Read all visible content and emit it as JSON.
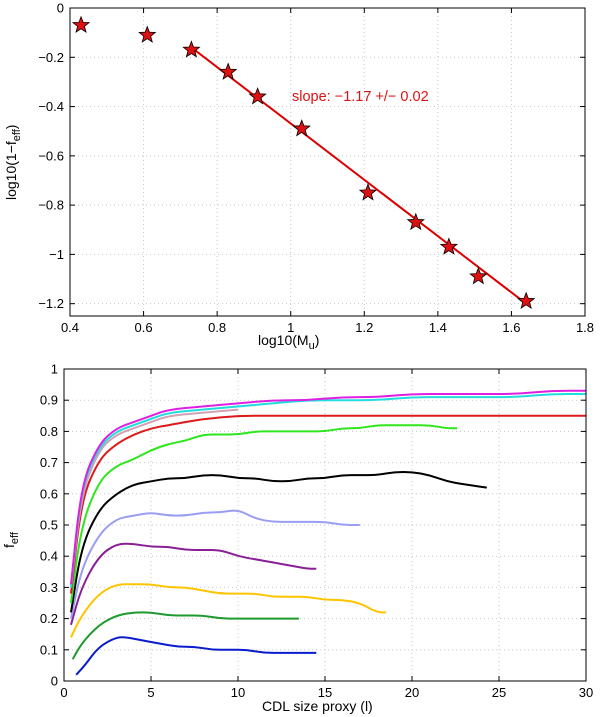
{
  "chart_data": [
    {
      "type": "scatter",
      "xlabel": "log10(M",
      "xlabel_sub": "u",
      "xlabel_tail": ")",
      "ylabel": "log10(1−f",
      "ylabel_sub": "eff",
      "ylabel_tail": ")",
      "xlim": [
        0.4,
        1.8
      ],
      "ylim": [
        -1.25,
        0
      ],
      "xticks": [
        0.4,
        0.6,
        0.8,
        1,
        1.2,
        1.4,
        1.6,
        1.8
      ],
      "xtick_labels": [
        "0.4",
        "0.6",
        "0.8",
        "1",
        "1.2",
        "1.4",
        "1.6",
        "1.8"
      ],
      "yticks": [
        0,
        -0.2,
        -0.4,
        -0.6,
        -0.8,
        -1,
        -1.2
      ],
      "ytick_labels": [
        "0",
        "−0.2",
        "−0.4",
        "−0.6",
        "−0.8",
        "−1",
        "−1.2"
      ],
      "grid": true,
      "annotation": "slope: −1.17 +/− 0.02",
      "marker_color": "#dd1111",
      "fit_color": "#dd0000",
      "points": {
        "x": [
          0.43,
          0.61,
          0.73,
          0.83,
          0.91,
          1.03,
          1.21,
          1.34,
          1.43,
          1.51,
          1.64
        ],
        "y": [
          -0.07,
          -0.11,
          -0.17,
          -0.26,
          -0.36,
          -0.49,
          -0.75,
          -0.87,
          -0.97,
          -1.09,
          -1.19
        ]
      },
      "fit_line": {
        "x": [
          0.73,
          1.64
        ],
        "y": [
          -0.16,
          -1.2
        ]
      }
    },
    {
      "type": "line",
      "xlabel": "CDL size proxy (l)",
      "ylabel": "f",
      "ylabel_sub": "eff",
      "xlim": [
        0,
        30
      ],
      "ylim": [
        0,
        1
      ],
      "xticks": [
        0,
        5,
        10,
        15,
        20,
        25,
        30
      ],
      "xtick_labels": [
        "0",
        "5",
        "10",
        "15",
        "20",
        "25",
        "30"
      ],
      "yticks": [
        0,
        0.1,
        0.2,
        0.3,
        0.4,
        0.5,
        0.6,
        0.7,
        0.8,
        0.9,
        1
      ],
      "ytick_labels": [
        "0",
        "0.1",
        "0.2",
        "0.3",
        "0.4",
        "0.5",
        "0.6",
        "0.7",
        "0.8",
        "0.9",
        "1"
      ],
      "grid": true,
      "series": [
        {
          "color": "#0a1ccc",
          "x": [
            0.7,
            1.2,
            2,
            3,
            3.6,
            4.5,
            5.5,
            6.5,
            7.5,
            8.5,
            9.5,
            10.5,
            11.5,
            12.5,
            13.5,
            14.5
          ],
          "y": [
            0.02,
            0.05,
            0.11,
            0.14,
            0.14,
            0.13,
            0.12,
            0.11,
            0.11,
            0.1,
            0.1,
            0.1,
            0.09,
            0.09,
            0.09,
            0.09
          ]
        },
        {
          "color": "#1e9a2e",
          "x": [
            0.5,
            1,
            2,
            3,
            4,
            5,
            6,
            7,
            8,
            9,
            10,
            11,
            12,
            13,
            13.5
          ],
          "y": [
            0.07,
            0.12,
            0.18,
            0.21,
            0.22,
            0.22,
            0.21,
            0.21,
            0.21,
            0.2,
            0.2,
            0.2,
            0.2,
            0.2,
            0.2
          ]
        },
        {
          "color": "#ffc400",
          "x": [
            0.4,
            1,
            2,
            3,
            4,
            5,
            6,
            7,
            8,
            9,
            10,
            11,
            12,
            13,
            14,
            15,
            16,
            17,
            18,
            18.5
          ],
          "y": [
            0.14,
            0.21,
            0.28,
            0.31,
            0.31,
            0.31,
            0.3,
            0.3,
            0.29,
            0.28,
            0.28,
            0.28,
            0.27,
            0.27,
            0.27,
            0.26,
            0.26,
            0.25,
            0.22,
            0.22
          ]
        },
        {
          "color": "#8a1f96",
          "x": [
            0.4,
            1,
            2,
            3,
            4,
            5,
            6,
            7,
            8,
            9,
            10,
            11,
            12,
            13,
            14,
            14.5
          ],
          "y": [
            0.18,
            0.3,
            0.4,
            0.44,
            0.44,
            0.43,
            0.43,
            0.42,
            0.42,
            0.42,
            0.4,
            0.39,
            0.38,
            0.37,
            0.36,
            0.36
          ]
        },
        {
          "color": "#9a9ef2",
          "x": [
            0.4,
            1,
            2,
            3,
            4,
            5,
            6,
            7,
            8,
            9,
            10,
            11,
            12,
            13,
            14,
            15,
            16,
            17
          ],
          "y": [
            0.2,
            0.36,
            0.47,
            0.52,
            0.53,
            0.54,
            0.53,
            0.53,
            0.54,
            0.54,
            0.55,
            0.52,
            0.51,
            0.51,
            0.51,
            0.51,
            0.5,
            0.5
          ]
        },
        {
          "color": "#000000",
          "x": [
            0.4,
            1,
            2,
            3,
            4,
            5,
            6,
            7,
            8,
            9,
            10,
            11,
            12,
            13,
            14,
            15,
            16,
            17,
            18,
            19,
            20,
            21,
            22,
            23,
            24.3
          ],
          "y": [
            0.22,
            0.43,
            0.55,
            0.6,
            0.63,
            0.64,
            0.65,
            0.65,
            0.66,
            0.66,
            0.65,
            0.65,
            0.64,
            0.64,
            0.65,
            0.65,
            0.66,
            0.66,
            0.66,
            0.67,
            0.67,
            0.66,
            0.64,
            0.63,
            0.62
          ]
        },
        {
          "color": "#2ee61e",
          "x": [
            0.4,
            1,
            2,
            3,
            4,
            5,
            6,
            7,
            8,
            9,
            10,
            11,
            12,
            13,
            14,
            15,
            16,
            17,
            18,
            19,
            20,
            21,
            22,
            22.6
          ],
          "y": [
            0.25,
            0.5,
            0.64,
            0.69,
            0.71,
            0.74,
            0.76,
            0.77,
            0.79,
            0.79,
            0.79,
            0.8,
            0.8,
            0.8,
            0.8,
            0.8,
            0.81,
            0.81,
            0.82,
            0.82,
            0.82,
            0.82,
            0.81,
            0.81
          ]
        },
        {
          "color": "#dd1a1a",
          "x": [
            0.4,
            1,
            2,
            3,
            4,
            5,
            6,
            8,
            10,
            12,
            14,
            16,
            18,
            20,
            22,
            24,
            26,
            28,
            30
          ],
          "y": [
            0.28,
            0.58,
            0.71,
            0.76,
            0.79,
            0.81,
            0.82,
            0.84,
            0.85,
            0.85,
            0.85,
            0.85,
            0.85,
            0.85,
            0.85,
            0.85,
            0.85,
            0.85,
            0.85
          ]
        },
        {
          "color": "#d4a0b4",
          "x": [
            0.4,
            1,
            2,
            3,
            4,
            5,
            6,
            8,
            10
          ],
          "y": [
            0.3,
            0.6,
            0.74,
            0.79,
            0.81,
            0.83,
            0.85,
            0.86,
            0.87
          ]
        },
        {
          "color": "#22dddd",
          "x": [
            0.4,
            1,
            2,
            3,
            4,
            5,
            6,
            8,
            10,
            12,
            14,
            16,
            18,
            20,
            22,
            24,
            26,
            28,
            30
          ],
          "y": [
            0.3,
            0.62,
            0.75,
            0.8,
            0.82,
            0.84,
            0.86,
            0.87,
            0.88,
            0.89,
            0.9,
            0.9,
            0.9,
            0.91,
            0.91,
            0.91,
            0.91,
            0.92,
            0.92
          ]
        },
        {
          "color": "#e020e0",
          "x": [
            0.4,
            1,
            2,
            3,
            4,
            5,
            6,
            8,
            10,
            12,
            14,
            16,
            18,
            20,
            22,
            24,
            26,
            28,
            30
          ],
          "y": [
            0.31,
            0.63,
            0.76,
            0.81,
            0.83,
            0.85,
            0.87,
            0.88,
            0.89,
            0.9,
            0.9,
            0.91,
            0.91,
            0.92,
            0.92,
            0.92,
            0.92,
            0.93,
            0.93
          ]
        }
      ]
    }
  ]
}
